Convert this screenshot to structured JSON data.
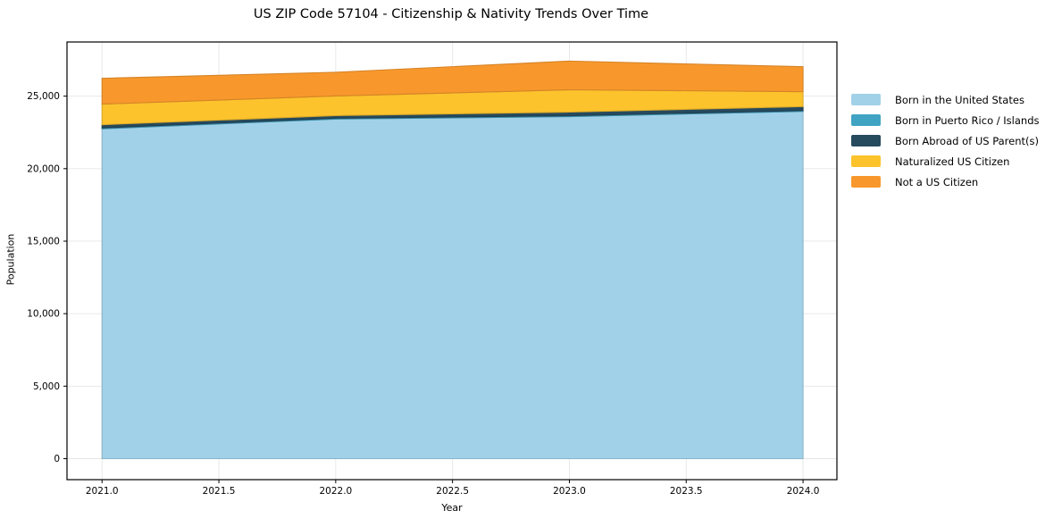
{
  "figure": {
    "title": "US ZIP Code 57104 - Citizenship & Nativity Trends Over Time"
  },
  "chart_data": {
    "type": "area",
    "stacked": true,
    "title": "US ZIP Code 57104 - Citizenship & Nativity Trends Over Time",
    "xlabel": "Year",
    "ylabel": "Population",
    "x": [
      2021,
      2022,
      2023,
      2024
    ],
    "series": [
      {
        "name": "Born in the United States",
        "color": "#a1d1e8",
        "values": [
          22750,
          23420,
          23590,
          23950
        ]
      },
      {
        "name": "Born in Puerto Rico / Islands",
        "color": "#41a3c4",
        "values": [
          60,
          60,
          60,
          60
        ]
      },
      {
        "name": "Born Abroad of US Parent(s)",
        "color": "#264a5e",
        "values": [
          220,
          180,
          250,
          270
        ]
      },
      {
        "name": "Naturalized US Citizen",
        "color": "#fcc32d",
        "values": [
          1420,
          1350,
          1540,
          1030
        ]
      },
      {
        "name": "Not a US Citizen",
        "color": "#f8982c",
        "values": [
          1780,
          1640,
          1980,
          1720
        ]
      }
    ],
    "xlim": [
      2020.85,
      2024.145
    ],
    "ylim": [
      -1448,
      28736
    ],
    "xticks": {
      "values": [
        2021.0,
        2021.5,
        2022.0,
        2022.5,
        2023.0,
        2023.5,
        2024.0
      ],
      "labels": [
        "2021.0",
        "2021.5",
        "2022.0",
        "2022.5",
        "2023.0",
        "2023.5",
        "2024.0"
      ]
    },
    "yticks": {
      "values": [
        0,
        5000,
        10000,
        15000,
        20000,
        25000
      ],
      "labels": [
        "0",
        "5,000",
        "10,000",
        "15,000",
        "20,000",
        "25,000"
      ]
    },
    "grid": true,
    "grid_color": "#e6e6e6",
    "spine_color": "#000000",
    "tick_color": "#000000",
    "text_color": "#000000",
    "background": "#ffffff",
    "legend_position": "right-outside"
  }
}
